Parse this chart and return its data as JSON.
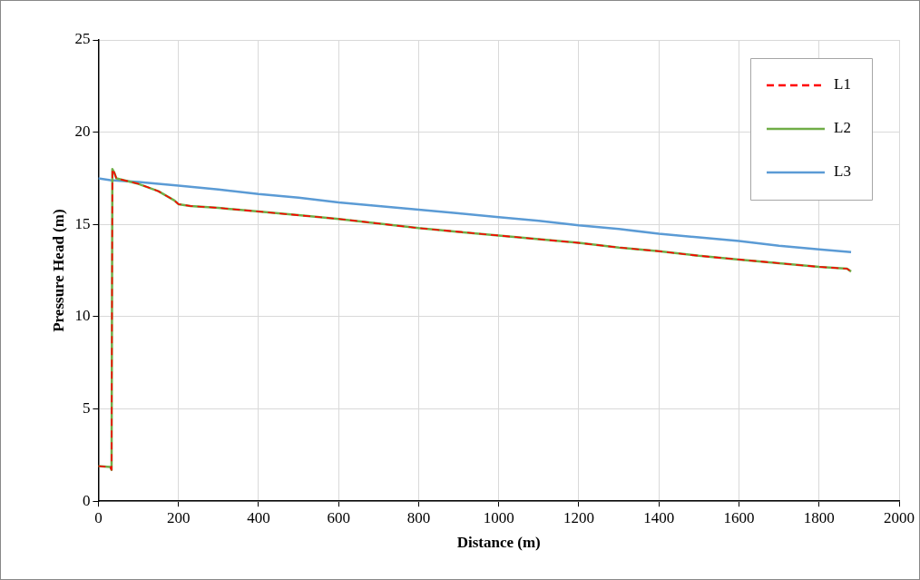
{
  "chart_data": {
    "type": "line",
    "xlabel": "Distance (m)",
    "ylabel": "Pressure Head (m)",
    "xlim": [
      0,
      2000
    ],
    "xticks": [
      0,
      200,
      400,
      600,
      800,
      1000,
      1200,
      1400,
      1600,
      1800,
      2000
    ],
    "ylim": [
      0,
      25
    ],
    "yticks": [
      0,
      5,
      10,
      15,
      20,
      25
    ],
    "grid": true,
    "legend": "top right",
    "marker": "none",
    "series": [
      {
        "name": "L1",
        "color": "#ff0000",
        "line_style": "dashed",
        "x": [
          0,
          30,
          33,
          35,
          40,
          45,
          100,
          150,
          190,
          200,
          230,
          300,
          400,
          500,
          600,
          700,
          800,
          900,
          1000,
          1100,
          1200,
          1300,
          1400,
          1500,
          1600,
          1700,
          1800,
          1870,
          1880
        ],
        "values": [
          1.9,
          1.85,
          1.7,
          18.0,
          17.8,
          17.5,
          17.2,
          16.8,
          16.3,
          16.1,
          16.0,
          15.9,
          15.7,
          15.5,
          15.3,
          15.05,
          14.8,
          14.6,
          14.4,
          14.2,
          14.0,
          13.75,
          13.55,
          13.3,
          13.1,
          12.9,
          12.7,
          12.6,
          12.45
        ]
      },
      {
        "name": "L2",
        "color": "#70ad47",
        "line_style": "solid",
        "x": [
          0,
          30,
          33,
          35,
          40,
          45,
          100,
          150,
          190,
          200,
          230,
          300,
          400,
          500,
          600,
          700,
          800,
          900,
          1000,
          1100,
          1200,
          1300,
          1400,
          1500,
          1600,
          1700,
          1800,
          1870,
          1880
        ],
        "values": [
          1.9,
          1.85,
          1.7,
          18.0,
          17.8,
          17.5,
          17.2,
          16.8,
          16.3,
          16.1,
          16.0,
          15.9,
          15.7,
          15.5,
          15.3,
          15.05,
          14.8,
          14.6,
          14.4,
          14.2,
          14.0,
          13.75,
          13.55,
          13.3,
          13.1,
          12.9,
          12.7,
          12.6,
          12.45
        ]
      },
      {
        "name": "L3",
        "color": "#5b9bd5",
        "line_style": "solid",
        "x": [
          0,
          30,
          100,
          200,
          300,
          400,
          500,
          600,
          700,
          800,
          900,
          1000,
          1100,
          1200,
          1300,
          1400,
          1500,
          1600,
          1700,
          1800,
          1880
        ],
        "values": [
          17.5,
          17.4,
          17.3,
          17.1,
          16.9,
          16.65,
          16.45,
          16.2,
          16.0,
          15.8,
          15.6,
          15.4,
          15.2,
          14.95,
          14.75,
          14.5,
          14.3,
          14.1,
          13.85,
          13.65,
          13.5
        ]
      }
    ]
  }
}
